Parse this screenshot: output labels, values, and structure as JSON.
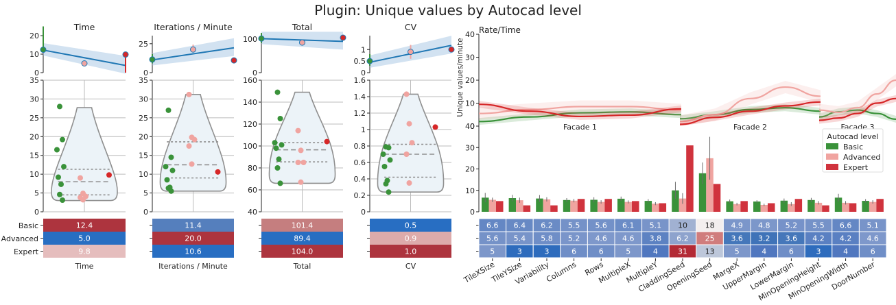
{
  "title": "Plugin: Unique values by Autocad level",
  "levels": [
    "Basic",
    "Advanced",
    "Expert"
  ],
  "level_colors": [
    "#3a923a",
    "#f0a4a0",
    "#d62728"
  ],
  "fit_color": "#1f77b4",
  "chart_data": [
    {
      "type": "scatter",
      "panel": "Time",
      "title": "Time",
      "xlabel": "Time",
      "ylim": [
        0,
        20
      ],
      "yticks": [
        0,
        10,
        20
      ],
      "ci": [
        [
          12,
          25
        ],
        [
          5,
          5.6
        ],
        [
          0,
          9
        ]
      ],
      "fit": [
        12.2,
        3.9
      ],
      "means": [
        12.4,
        5.0,
        9.8
      ]
    },
    {
      "type": "violin",
      "panel": "Time",
      "ylim": [
        0,
        35
      ],
      "yticks": [
        0,
        5,
        10,
        15,
        20,
        25,
        30,
        35
      ],
      "quartiles": [
        4.5,
        8.0,
        11.3
      ],
      "extent": [
        3.0,
        27.7
      ],
      "points": [
        {
          "level": "Basic",
          "values": [
            28,
            19.2,
            16.5,
            12.0,
            9.2,
            7.3,
            4.6,
            3.1
          ]
        },
        {
          "level": "Advanced",
          "values": [
            9.0,
            4.9,
            4.1,
            3.8,
            3.2
          ]
        },
        {
          "level": "Expert",
          "values": [
            9.8
          ]
        }
      ]
    },
    {
      "type": "table",
      "panel": "Time",
      "rows": [
        "Basic",
        "Advanced",
        "Expert"
      ],
      "values": [
        "12.4",
        "5.0",
        "9.8"
      ],
      "cell_colors": [
        "#ad343e",
        "#286ec2",
        "#e5bdbd"
      ]
    },
    {
      "type": "scatter",
      "panel": "Iterations / Minute",
      "title": "Iterations / Minute",
      "xlabel": "Iterations / Minute",
      "ylim": [
        0,
        32
      ],
      "yticks": [
        0,
        25
      ],
      "ci": [
        [
          8,
          16
        ],
        [
          19.3,
          24.2
        ],
        [
          10,
          10
        ]
      ],
      "fit": [
        11,
        21.5
      ],
      "means": [
        11.4,
        20.0,
        10.6
      ]
    },
    {
      "type": "violin",
      "panel": "Iterations / Minute",
      "ylim": [
        0,
        35
      ],
      "yticks": [
        0,
        5,
        10,
        15,
        20,
        25,
        30,
        35
      ],
      "quartiles": [
        9.0,
        12.5,
        18.6
      ],
      "extent": [
        5.5,
        31.2
      ],
      "points": [
        {
          "level": "Basic",
          "values": [
            27.0,
            14.5,
            12.0,
            11.0,
            8.5,
            6.5,
            6.3,
            5.5
          ]
        },
        {
          "level": "Advanced",
          "values": [
            31.2,
            19.8,
            19.2,
            17.5,
            12.7
          ]
        },
        {
          "level": "Expert",
          "values": [
            10.6
          ]
        }
      ]
    },
    {
      "type": "table",
      "panel": "Iterations / Minute",
      "rows": [
        "Basic",
        "Advanced",
        "Expert"
      ],
      "values": [
        "11.4",
        "20.0",
        "10.6"
      ],
      "cell_colors": [
        "#557fbd",
        "#ad343e",
        "#286ec2"
      ]
    },
    {
      "type": "scatter",
      "panel": "Total",
      "title": "Total",
      "xlabel": "Total",
      "ylim": [
        0,
        110
      ],
      "yticks": [
        0,
        100
      ],
      "ci": [
        [
          88,
          118
        ],
        [
          82,
          96
        ],
        [
          104,
          104
        ]
      ],
      "fit": [
        101,
        93
      ],
      "means": [
        101.4,
        89.4,
        104.0
      ]
    },
    {
      "type": "violin",
      "panel": "Total",
      "ylim": [
        40,
        160
      ],
      "yticks": [
        40,
        60,
        80,
        100,
        120,
        140,
        160
      ],
      "quartiles": [
        85.5,
        96.5,
        103.0
      ],
      "extent": [
        66,
        149
      ],
      "points": [
        {
          "level": "Basic",
          "values": [
            149,
            125,
            103,
            101,
            98,
            88,
            80,
            66
          ]
        },
        {
          "level": "Advanced",
          "values": [
            114,
            96,
            85,
            85,
            67
          ]
        },
        {
          "level": "Expert",
          "values": [
            104
          ]
        }
      ]
    },
    {
      "type": "table",
      "panel": "Total",
      "rows": [
        "Basic",
        "Advanced",
        "Expert"
      ],
      "values": [
        "101.4",
        "89.4",
        "104.0"
      ],
      "cell_colors": [
        "#c57e7f",
        "#286ec2",
        "#ad343e"
      ]
    },
    {
      "type": "scatter",
      "panel": "CV",
      "title": "CV",
      "xlabel": "CV",
      "ylim": [
        0,
        1.6
      ],
      "yticks": [
        0,
        0.5,
        1.0
      ],
      "ci": [
        [
          0.3,
          0.8
        ],
        [
          0.6,
          1.2
        ],
        [
          1.0,
          1.0
        ]
      ],
      "fit": [
        0.45,
        1.18
      ],
      "means": [
        0.5,
        0.9,
        1.0
      ]
    },
    {
      "type": "violin",
      "panel": "CV",
      "ylim": [
        0.0,
        1.6
      ],
      "yticks": [
        0.0,
        0.2,
        0.4,
        0.6,
        0.8,
        1.0,
        1.2,
        1.4,
        1.6
      ],
      "quartiles": [
        0.42,
        0.7,
        0.82
      ],
      "extent": [
        0.24,
        1.43
      ],
      "points": [
        {
          "level": "Basic",
          "values": [
            0.79,
            0.78,
            0.7,
            0.63,
            0.55,
            0.38,
            0.34,
            0.24
          ]
        },
        {
          "level": "Advanced",
          "values": [
            1.43,
            1.07,
            0.84,
            0.7,
            0.35
          ]
        },
        {
          "level": "Expert",
          "values": [
            1.03
          ]
        }
      ]
    },
    {
      "type": "table",
      "panel": "CV",
      "rows": [
        "Basic",
        "Advanced",
        "Expert"
      ],
      "values": [
        "0.5",
        "0.9",
        "1.0"
      ],
      "cell_colors": [
        "#286ec2",
        "#ddabab",
        "#ad343e"
      ]
    },
    {
      "type": "line",
      "panel": "Rate/Time",
      "title": "Rate/Time",
      "ylabel": "Unique values/minute",
      "ylim": [
        0,
        40
      ],
      "yticks": [
        0,
        10,
        20,
        30,
        40
      ],
      "facets": [
        "Facade 1",
        "Facade 2",
        "Facade 3"
      ],
      "x_points": [
        0,
        0.25,
        0.5,
        0.75,
        1
      ],
      "series": [
        {
          "level": "Basic",
          "facets": [
            [
              2,
              4,
              5.8,
              6.2,
              5
            ],
            [
              3.2,
              5,
              7.2,
              8,
              6.5
            ],
            [
              4,
              6.2,
              7,
              5.5,
              3
            ]
          ]
        },
        {
          "level": "Advanced",
          "facets": [
            [
              5.5,
              7.2,
              8.5,
              8.5,
              7
            ],
            [
              2,
              5,
              12,
              17,
              13
            ],
            [
              7,
              6,
              8,
              14,
              20
            ]
          ]
        },
        {
          "level": "Expert",
          "facets": [
            [
              9.5,
              6.5,
              4.2,
              4.8,
              7.5
            ],
            [
              0.8,
              3.8,
              6.5,
              8.8,
              10.5
            ],
            [
              2.5,
              3.5,
              5.5,
              10,
              12
            ]
          ]
        }
      ]
    },
    {
      "type": "bar",
      "panel": "Rate by plugin",
      "ylim": [
        0,
        40
      ],
      "yticks": [
        0,
        10,
        20,
        30,
        40
      ],
      "legend_title": "Autocad level",
      "legend_loc": "upper right",
      "categories": [
        "TileXSize",
        "TileYSize",
        "Variability",
        "Columns",
        "Rows",
        "MultipleX",
        "MultipleY",
        "CladdingSeed",
        "OpeningSeed",
        "MargeX",
        "UpperMargin",
        "LowerMargin",
        "MinOpeningHeight",
        "MinOpeningWidth",
        "DoorNumber"
      ],
      "series": [
        {
          "name": "Basic",
          "values": [
            6.6,
            6.4,
            6.2,
            5.5,
            5.6,
            6.1,
            5.1,
            10,
            18,
            4.9,
            4.8,
            5.2,
            5.5,
            6.6,
            5.1
          ],
          "err": [
            2.2,
            1.5,
            1.6,
            0.9,
            1.2,
            1.0,
            0.8,
            4,
            5,
            0.8,
            0.6,
            1.0,
            1.0,
            1.8,
            0.8
          ]
        },
        {
          "name": "Advanced",
          "values": [
            5.6,
            5.4,
            5.8,
            5.2,
            4.6,
            4.6,
            3.8,
            6.2,
            25,
            3.6,
            3.2,
            3.6,
            4.2,
            4.2,
            4.6
          ],
          "err": [
            1.0,
            1.2,
            1.0,
            0.8,
            0.8,
            0.7,
            0.7,
            2.5,
            10,
            0.6,
            0.6,
            0.9,
            0.8,
            0.8,
            0.8
          ]
        },
        {
          "name": "Expert",
          "values": [
            5,
            3,
            3,
            6,
            6,
            5,
            4,
            31,
            13,
            5,
            4,
            6,
            3,
            4,
            6
          ]
        }
      ]
    },
    {
      "type": "heatmap",
      "panel": "Rate table",
      "categories": [
        "TileXSize",
        "TileYSize",
        "Variability",
        "Columns",
        "Rows",
        "MultipleX",
        "MultipleY",
        "CladdingSeed",
        "OpeningSeed",
        "MargeX",
        "UpperMargin",
        "LowerMargin",
        "MinOpeningHeight",
        "MinOpeningWidth",
        "DoorNumber"
      ],
      "rows": [
        [
          "6.6",
          "6.4",
          "6.2",
          "5.5",
          "5.6",
          "6.1",
          "5.1",
          "10",
          "18",
          "4.9",
          "4.8",
          "5.2",
          "5.5",
          "6.6",
          "5.1"
        ],
        [
          "5.6",
          "5.4",
          "5.8",
          "5.2",
          "4.6",
          "4.6",
          "3.8",
          "6.2",
          "25",
          "3.6",
          "3.2",
          "3.6",
          "4.2",
          "4.2",
          "4.6"
        ],
        [
          "5",
          "3",
          "3",
          "6",
          "6",
          "5",
          "4",
          "31",
          "13",
          "5",
          "4",
          "6",
          "3",
          "4",
          "6"
        ]
      ],
      "cell_colors": [
        [
          "#6487c4",
          "#6789c4",
          "#6a8bc5",
          "#7592c8",
          "#7391c8",
          "#6b8cc6",
          "#7894c9",
          "#a1b1d2",
          "#f3eeee",
          "#7b96ca",
          "#7c97ca",
          "#7692c9",
          "#7592c8",
          "#6487c4",
          "#7894c9"
        ],
        [
          "#7592c8",
          "#7894c9",
          "#6f8ec7",
          "#7a95ca",
          "#7e98cb",
          "#7e98cb",
          "#5d82c2",
          "#8ea3cd",
          "#d07c7c",
          "#4577ba",
          "#3f73b8",
          "#4577ba",
          "#5a80c2",
          "#5a80c2",
          "#7e98cb"
        ],
        [
          "#7d97ca",
          "#2e6cbd",
          "#2e6cbd",
          "#6f8ec7",
          "#6f8ec7",
          "#7d97ca",
          "#5077bf",
          "#b32a35",
          "#bdc7da",
          "#7d97ca",
          "#5077bf",
          "#6f8ec7",
          "#2e6cbd",
          "#5077bf",
          "#6f8ec7"
        ]
      ]
    }
  ]
}
